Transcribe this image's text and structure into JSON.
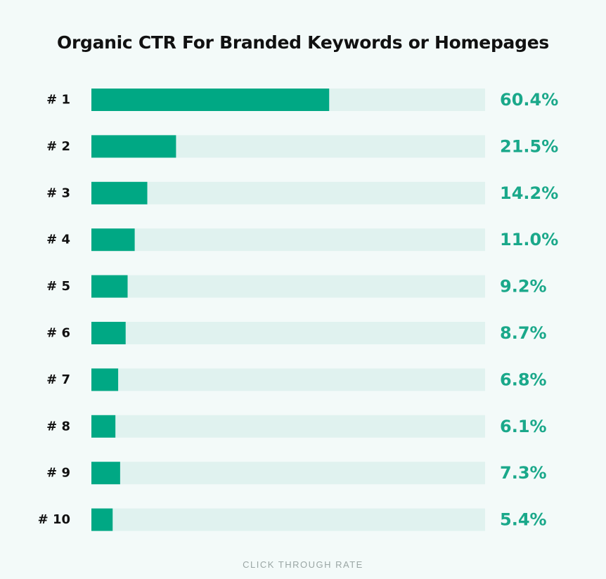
{
  "chart_data": {
    "type": "bar",
    "orientation": "horizontal",
    "title": "Organic CTR For Branded Keywords or Homepages",
    "xlabel": "CLICK THROUGH RATE",
    "ylabel": "",
    "categories": [
      "# 1",
      "# 2",
      "# 3",
      "# 4",
      "# 5",
      "# 6",
      "# 7",
      "# 8",
      "# 9",
      "# 10"
    ],
    "values": [
      60.4,
      21.5,
      14.2,
      11.0,
      9.2,
      8.7,
      6.8,
      6.1,
      7.3,
      5.4
    ],
    "value_labels": [
      "60.4%",
      "21.5%",
      "14.2%",
      "11.0%",
      "9.2%",
      "8.7%",
      "6.8%",
      "6.1%",
      "7.3%",
      "5.4%"
    ],
    "xlim": [
      0,
      100
    ],
    "grid": false,
    "legend": "none",
    "colors": {
      "bar": "#00a884",
      "track": "#e0f2ef",
      "value_text": "#1aa88a",
      "background": "#f3faf9"
    }
  }
}
